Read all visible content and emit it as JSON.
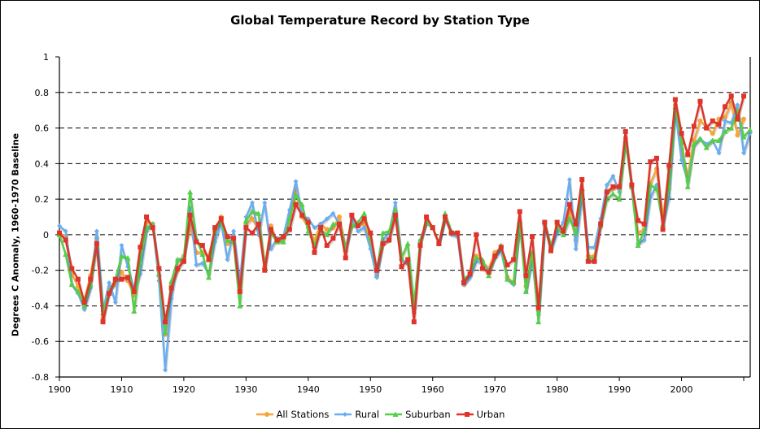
{
  "chart_data": {
    "type": "line",
    "title": "Global Temperature Record by Station Type",
    "xlabel": "",
    "ylabel": "Degrees C Anomaly, 1960-1970 Baseline",
    "xlim": [
      1900,
      2010
    ],
    "ylim": [
      -0.8,
      1
    ],
    "x_ticks": [
      "1900",
      "1910",
      "1920",
      "1930",
      "1940",
      "1950",
      "1960",
      "1970",
      "1980",
      "1990",
      "2000"
    ],
    "y_ticks": [
      "1",
      "0.8",
      "0.6",
      "0.4",
      "0.2",
      "0",
      "-0.2",
      "-0.4",
      "-0.6",
      "-0.8"
    ],
    "grid": "horizontal dashed",
    "legend_position": "bottom",
    "x_start": 1900,
    "series": [
      {
        "name": "All Stations",
        "color": "#f7a53a",
        "marker": "circle",
        "values": [
          0.01,
          -0.01,
          -0.22,
          -0.29,
          -0.37,
          -0.23,
          -0.02,
          -0.47,
          -0.31,
          -0.28,
          -0.21,
          -0.26,
          -0.34,
          -0.12,
          0.07,
          0.06,
          -0.23,
          -0.56,
          -0.28,
          -0.2,
          -0.12,
          0.05,
          -0.1,
          -0.1,
          -0.12,
          0.02,
          0.1,
          -0.05,
          -0.03,
          -0.28,
          0.06,
          0.09,
          0.03,
          -0.18,
          0.05,
          -0.04,
          -0.02,
          0.11,
          0.25,
          0.1,
          0.04,
          -0.03,
          0.06,
          0.03,
          0.04,
          0.1,
          -0.07,
          0.05,
          0.06,
          0.06,
          -0.04,
          -0.23,
          -0.05,
          -0.03,
          0.12,
          -0.14,
          -0.16,
          -0.41,
          -0.05,
          0.08,
          0.04,
          -0.05,
          0.09,
          0.01,
          0.0,
          -0.28,
          -0.23,
          -0.12,
          -0.15,
          -0.19,
          -0.1,
          -0.07,
          -0.24,
          -0.27,
          0.06,
          -0.29,
          -0.12,
          -0.43,
          0.07,
          -0.07,
          0.05,
          0.03,
          0.13,
          -0.03,
          0.25,
          -0.12,
          -0.12,
          0.07,
          0.24,
          0.26,
          0.27,
          0.54,
          0.27,
          0.01,
          0.03,
          0.29,
          0.37,
          0.09,
          0.37,
          0.73,
          0.48,
          0.33,
          0.53,
          0.64,
          0.61,
          0.57,
          0.65,
          0.66,
          0.74,
          0.56,
          0.65
        ]
      },
      {
        "name": "Rural",
        "color": "#6aaef0",
        "marker": "diamond",
        "values": [
          0.05,
          0.02,
          -0.28,
          -0.33,
          -0.42,
          -0.3,
          0.02,
          -0.43,
          -0.27,
          -0.38,
          -0.06,
          -0.18,
          -0.31,
          -0.22,
          0.02,
          0.06,
          -0.26,
          -0.76,
          -0.36,
          -0.14,
          -0.15,
          0.15,
          -0.17,
          -0.16,
          -0.22,
          -0.04,
          0.07,
          -0.14,
          0.02,
          -0.27,
          0.1,
          0.18,
          0.0,
          0.18,
          -0.08,
          -0.02,
          -0.01,
          0.14,
          0.3,
          0.11,
          0.09,
          0.04,
          0.06,
          0.09,
          0.12,
          0.06,
          -0.08,
          0.09,
          0.02,
          0.04,
          -0.08,
          -0.24,
          -0.03,
          0.01,
          0.18,
          -0.14,
          -0.16,
          -0.44,
          -0.03,
          0.07,
          0.04,
          -0.05,
          0.1,
          0.0,
          -0.01,
          -0.28,
          -0.24,
          -0.15,
          -0.16,
          -0.2,
          -0.13,
          -0.09,
          -0.25,
          -0.28,
          0.07,
          -0.32,
          -0.14,
          -0.45,
          0.05,
          -0.09,
          0.01,
          0.07,
          0.31,
          -0.08,
          0.22,
          -0.07,
          -0.07,
          0.09,
          0.28,
          0.33,
          0.24,
          0.55,
          0.26,
          -0.05,
          -0.03,
          0.21,
          0.28,
          0.05,
          0.21,
          0.7,
          0.42,
          0.3,
          0.5,
          0.54,
          0.51,
          0.53,
          0.46,
          0.64,
          0.63,
          0.73,
          0.46,
          0.57
        ]
      },
      {
        "name": "Suburban",
        "color": "#54cf48",
        "marker": "triangle",
        "values": [
          0.0,
          -0.11,
          -0.28,
          -0.32,
          -0.4,
          -0.28,
          -0.06,
          -0.44,
          -0.32,
          -0.25,
          -0.12,
          -0.13,
          -0.43,
          -0.15,
          0.04,
          0.06,
          -0.22,
          -0.55,
          -0.26,
          -0.14,
          -0.13,
          0.24,
          -0.02,
          -0.11,
          -0.24,
          0.03,
          0.07,
          -0.03,
          -0.04,
          -0.4,
          0.08,
          0.13,
          0.12,
          -0.18,
          0.01,
          -0.04,
          -0.04,
          0.09,
          0.22,
          0.17,
          0.02,
          -0.06,
          0.03,
          0.0,
          0.06,
          0.06,
          -0.08,
          0.05,
          0.07,
          0.12,
          -0.02,
          -0.2,
          0.01,
          0.02,
          0.14,
          -0.13,
          -0.05,
          -0.4,
          -0.03,
          0.07,
          0.04,
          -0.05,
          0.12,
          0.02,
          0.01,
          -0.25,
          -0.22,
          -0.13,
          -0.14,
          -0.23,
          -0.12,
          -0.06,
          -0.25,
          -0.27,
          0.08,
          -0.32,
          -0.1,
          -0.49,
          0.07,
          -0.06,
          0.04,
          0.0,
          0.09,
          0.01,
          0.26,
          -0.13,
          -0.13,
          0.05,
          0.2,
          0.23,
          0.2,
          0.53,
          0.27,
          -0.06,
          0.02,
          0.28,
          0.26,
          0.06,
          0.27,
          0.72,
          0.52,
          0.27,
          0.51,
          0.54,
          0.49,
          0.53,
          0.53,
          0.58,
          0.6,
          0.7,
          0.55,
          0.59
        ]
      },
      {
        "name": "Urban",
        "color": "#e0342a",
        "marker": "square",
        "values": [
          0.01,
          -0.03,
          -0.19,
          -0.25,
          -0.38,
          -0.25,
          -0.05,
          -0.49,
          -0.33,
          -0.25,
          -0.25,
          -0.24,
          -0.32,
          -0.07,
          0.1,
          0.04,
          -0.19,
          -0.49,
          -0.3,
          -0.19,
          -0.15,
          0.11,
          -0.04,
          -0.06,
          -0.14,
          0.04,
          0.09,
          -0.01,
          -0.02,
          -0.32,
          0.04,
          0.01,
          0.06,
          -0.2,
          0.03,
          -0.03,
          -0.01,
          0.03,
          0.17,
          0.11,
          0.07,
          -0.1,
          0.04,
          -0.06,
          -0.02,
          0.06,
          -0.13,
          0.11,
          0.05,
          0.09,
          0.01,
          -0.2,
          -0.05,
          -0.03,
          0.11,
          -0.18,
          -0.14,
          -0.49,
          -0.06,
          0.1,
          0.04,
          -0.05,
          0.1,
          0.01,
          0.01,
          -0.27,
          -0.22,
          0.0,
          -0.19,
          -0.21,
          -0.12,
          -0.07,
          -0.17,
          -0.14,
          0.13,
          -0.23,
          -0.01,
          -0.41,
          0.07,
          -0.09,
          0.07,
          0.02,
          0.17,
          0.06,
          0.31,
          -0.15,
          -0.15,
          0.06,
          0.24,
          0.27,
          0.27,
          0.58,
          0.28,
          0.08,
          0.06,
          0.41,
          0.43,
          0.03,
          0.39,
          0.76,
          0.57,
          0.45,
          0.61,
          0.75,
          0.6,
          0.64,
          0.62,
          0.72,
          0.78,
          0.65,
          0.78
        ]
      }
    ]
  }
}
